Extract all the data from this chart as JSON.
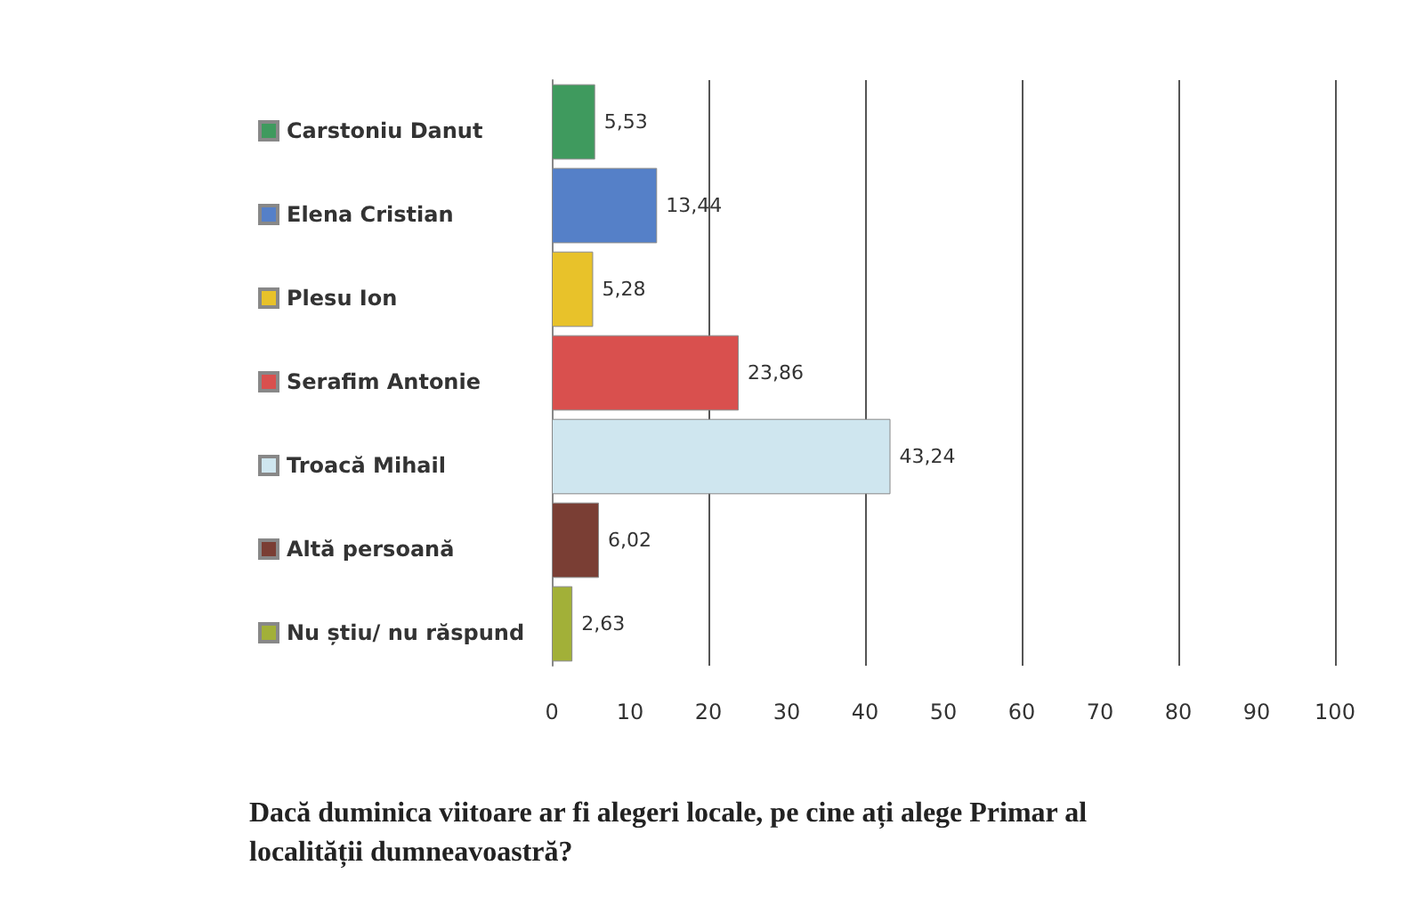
{
  "chart_data": {
    "type": "bar",
    "orientation": "horizontal",
    "title": "Dacă duminica viitoare ar fi alegeri locale, pe cine ați alege Primar al localității dumneavoastră?",
    "categories": [
      null,
      null,
      null,
      null,
      null,
      null,
      null
    ],
    "series": [
      {
        "name": "Carstoniu Danut",
        "color": "#3f9a5e",
        "values": [
          5.53,
          null,
          null,
          null,
          null,
          null,
          null
        ],
        "value_labels": [
          "5,53",
          null,
          null,
          null,
          null,
          null,
          null
        ]
      },
      {
        "name": "Elena Cristian",
        "color": "#5580c8",
        "values": [
          null,
          13.44,
          null,
          null,
          null,
          null,
          null
        ],
        "value_labels": [
          null,
          "13,44",
          null,
          null,
          null,
          null,
          null
        ]
      },
      {
        "name": "Plesu Ion",
        "color": "#e8c22a",
        "values": [
          null,
          null,
          5.28,
          null,
          null,
          null,
          null
        ],
        "value_labels": [
          null,
          null,
          "5,28",
          null,
          null,
          null,
          null
        ]
      },
      {
        "name": "Serafim Antonie",
        "color": "#d9504e",
        "values": [
          null,
          null,
          null,
          23.86,
          null,
          null,
          null
        ],
        "value_labels": [
          null,
          null,
          null,
          "23,86",
          null,
          null,
          null
        ]
      },
      {
        "name": "Troacă Mihail",
        "color": "#cfe6ef",
        "values": [
          null,
          null,
          null,
          null,
          43.24,
          null,
          null
        ],
        "value_labels": [
          null,
          null,
          null,
          null,
          "43,24",
          null,
          null
        ]
      },
      {
        "name": "Altă persoană",
        "color": "#7a3e34",
        "values": [
          null,
          null,
          null,
          null,
          null,
          6.02,
          null
        ],
        "value_labels": [
          null,
          null,
          null,
          null,
          null,
          "6,02",
          null
        ]
      },
      {
        "name": "Nu știu/ nu răspund",
        "color": "#a2b038",
        "values": [
          null,
          null,
          null,
          null,
          null,
          null,
          2.63
        ],
        "value_labels": [
          null,
          null,
          null,
          null,
          null,
          null,
          "2,63"
        ]
      }
    ],
    "xlim": [
      0,
      100
    ],
    "xticks": [
      0,
      10,
      20,
      30,
      40,
      50,
      60,
      70,
      80,
      90,
      100
    ],
    "grid": "x",
    "legend": "left"
  }
}
